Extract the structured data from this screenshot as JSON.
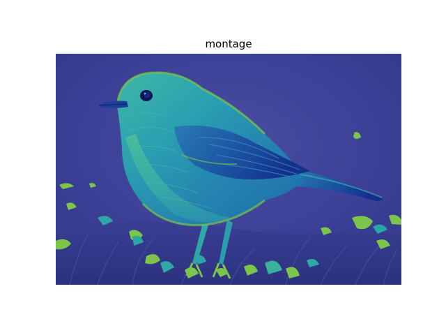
{
  "figure": {
    "title": "montage"
  },
  "image": {
    "subject": "bird-false-color",
    "colormap": "viridis-like",
    "colors": {
      "background": "#3b3f95",
      "background_dark": "#2f3482",
      "body_teal": "#1f8fa8",
      "body_cyan": "#28b6b4",
      "highlight_green": "#7cc44a",
      "wing_blue": "#1c5aa6",
      "wing_dark": "#13318a",
      "eye": "#0b1553"
    }
  }
}
